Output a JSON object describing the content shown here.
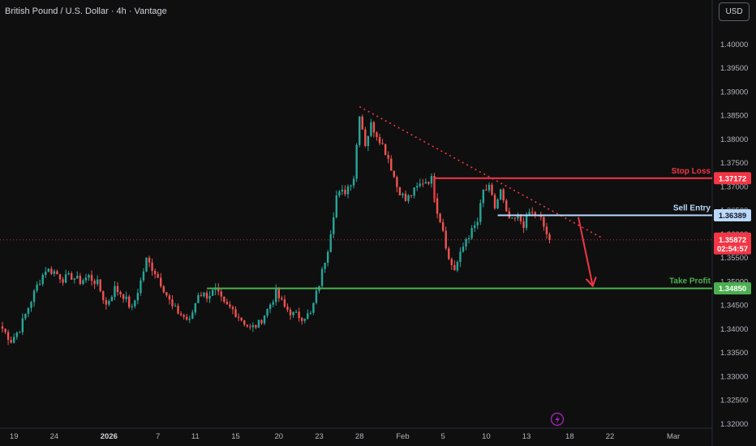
{
  "header": {
    "title": "British Pound / U.S. Dollar · 4h · Vantage",
    "currency": "USD"
  },
  "price_badge": {
    "price": "1.35872",
    "countdown": "02:54:57"
  },
  "colors": {
    "background": "#0f0f0f",
    "bullish": "#26a69a",
    "bearish": "#ef5350",
    "stop_loss": "#f23645",
    "sell_entry": "#bbd9fb",
    "take_profit": "#4caf50",
    "trendline": "#f23645",
    "current_price": "#f23645"
  },
  "chart_data": {
    "type": "candlestick",
    "title": "British Pound / U.S. Dollar · 4h · Vantage",
    "ylim": [
      1.318,
      1.4045
    ],
    "y_ticks": [
      "1.40000",
      "1.39500",
      "1.39000",
      "1.38500",
      "1.38000",
      "1.37500",
      "1.37000",
      "1.36500",
      "1.36000",
      "1.35500",
      "1.35000",
      "1.34500",
      "1.34000",
      "1.33500",
      "1.33000",
      "1.32500",
      "1.32000"
    ],
    "x_ticks": [
      {
        "label": "19",
        "bar": 4
      },
      {
        "label": "24",
        "bar": 18
      },
      {
        "label": "2026",
        "bar": 37,
        "bold": true
      },
      {
        "label": "7",
        "bar": 54
      },
      {
        "label": "11",
        "bar": 67
      },
      {
        "label": "15",
        "bar": 81
      },
      {
        "label": "20",
        "bar": 96
      },
      {
        "label": "23",
        "bar": 110
      },
      {
        "label": "28",
        "bar": 124
      },
      {
        "label": "Feb",
        "bar": 139
      },
      {
        "label": "5",
        "bar": 153
      },
      {
        "label": "10",
        "bar": 168
      },
      {
        "label": "13",
        "bar": 182
      },
      {
        "label": "18",
        "bar": 197
      },
      {
        "label": "22",
        "bar": 211
      },
      {
        "label": "Mar",
        "bar": 233
      }
    ],
    "levels": [
      {
        "name": "Stop Loss",
        "value": 1.37172,
        "label": "1.37172",
        "from_bar": 150
      },
      {
        "name": "Sell Entry",
        "value": 1.36389,
        "label": "1.36389",
        "from_bar": 172
      },
      {
        "name": "Take Profit",
        "value": 1.3485,
        "label": "1.34850",
        "from_bar": 71
      }
    ],
    "current_price": 1.35872,
    "trendline": {
      "from": {
        "bar": 124,
        "price": 1.3868
      },
      "to": {
        "bar": 208,
        "price": 1.3592
      }
    },
    "projection_arrow": {
      "from": {
        "bar": 200,
        "price": 1.3635
      },
      "to": {
        "bar": 205,
        "price": 1.349
      }
    },
    "waypoints": [
      [
        0,
        1.34
      ],
      [
        3,
        1.3375
      ],
      [
        6,
        1.34
      ],
      [
        9,
        1.3445
      ],
      [
        12,
        1.349
      ],
      [
        15,
        1.3525
      ],
      [
        18,
        1.352
      ],
      [
        21,
        1.3505
      ],
      [
        24,
        1.351
      ],
      [
        27,
        1.35
      ],
      [
        30,
        1.351
      ],
      [
        33,
        1.3495
      ],
      [
        36,
        1.345
      ],
      [
        39,
        1.3485
      ],
      [
        42,
        1.347
      ],
      [
        45,
        1.344
      ],
      [
        48,
        1.35
      ],
      [
        50,
        1.3545
      ],
      [
        53,
        1.352
      ],
      [
        56,
        1.3485
      ],
      [
        59,
        1.3445
      ],
      [
        62,
        1.343
      ],
      [
        65,
        1.3415
      ],
      [
        68,
        1.3475
      ],
      [
        71,
        1.347
      ],
      [
        74,
        1.348
      ],
      [
        77,
        1.345
      ],
      [
        80,
        1.344
      ],
      [
        83,
        1.342
      ],
      [
        86,
        1.34
      ],
      [
        89,
        1.341
      ],
      [
        92,
        1.344
      ],
      [
        95,
        1.3475
      ],
      [
        98,
        1.3445
      ],
      [
        101,
        1.343
      ],
      [
        104,
        1.3425
      ],
      [
        107,
        1.343
      ],
      [
        110,
        1.3495
      ],
      [
        113,
        1.357
      ],
      [
        116,
        1.368
      ],
      [
        119,
        1.369
      ],
      [
        122,
        1.372
      ],
      [
        124,
        1.3855
      ],
      [
        126,
        1.379
      ],
      [
        128,
        1.383
      ],
      [
        131,
        1.38
      ],
      [
        134,
        1.376
      ],
      [
        137,
        1.37
      ],
      [
        140,
        1.367
      ],
      [
        143,
        1.369
      ],
      [
        146,
        1.371
      ],
      [
        149,
        1.3715
      ],
      [
        151,
        1.365
      ],
      [
        153,
        1.361
      ],
      [
        155,
        1.3545
      ],
      [
        157,
        1.3525
      ],
      [
        159,
        1.3555
      ],
      [
        161,
        1.359
      ],
      [
        163,
        1.3605
      ],
      [
        165,
        1.3625
      ],
      [
        167,
        1.369
      ],
      [
        169,
        1.3695
      ],
      [
        171,
        1.3655
      ],
      [
        173,
        1.369
      ],
      [
        175,
        1.364
      ],
      [
        177,
        1.3625
      ],
      [
        179,
        1.3635
      ],
      [
        181,
        1.362
      ],
      [
        183,
        1.3645
      ],
      [
        185,
        1.364
      ],
      [
        187,
        1.363
      ],
      [
        189,
        1.36
      ],
      [
        190,
        1.3587
      ]
    ]
  }
}
